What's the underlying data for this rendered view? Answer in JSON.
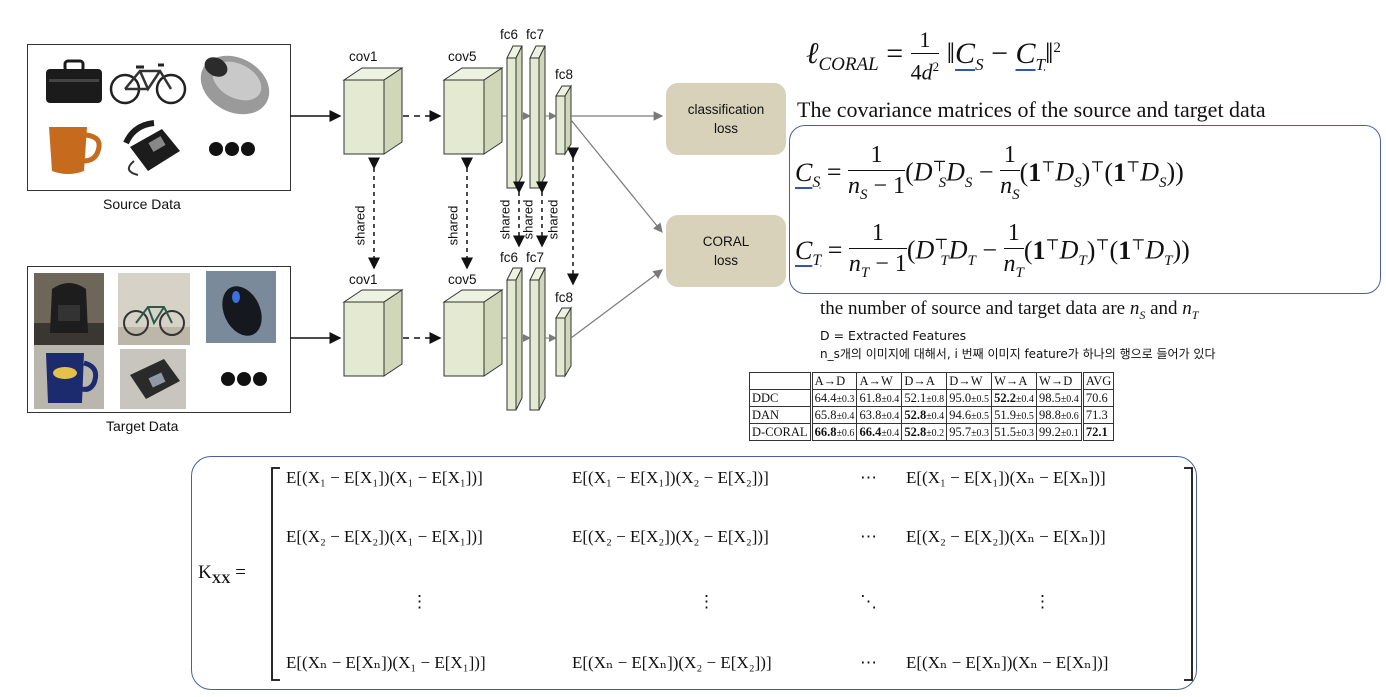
{
  "source_panel": {
    "caption": "Source Data",
    "items": [
      "briefcase",
      "bicycle",
      "computer-mouse",
      "mug",
      "phone",
      "more"
    ]
  },
  "target_panel": {
    "caption": "Target Data",
    "items": [
      "backpack",
      "bicycle",
      "computer-mouse",
      "mug",
      "phone",
      "more"
    ]
  },
  "network": {
    "top_labels": {
      "cov1": "cov1",
      "cov5": "cov5",
      "fc6": "fc6",
      "fc7": "fc7",
      "fc8": "fc8"
    },
    "bottom_labels": {
      "cov1": "cov1",
      "cov5": "cov5",
      "fc6": "fc6",
      "fc7": "fc7",
      "fc8": "fc8"
    },
    "shared_label": "shared",
    "loss_classification": {
      "line1": "classification",
      "line2": "loss"
    },
    "loss_coral": {
      "line1": "CORAL",
      "line2": "loss"
    },
    "colors": {
      "layer_fill": "#e3ead1",
      "layer_stroke": "#333333",
      "loss_fill": "#d8d2bb",
      "arrow": "#7a7a7a"
    }
  },
  "formula_text": {
    "covariance_caption": "The covariance matrices of the source and target data",
    "counts_caption_prefix": "the number of source and target data are",
    "counts_caption_and": "and",
    "features_note": "D = Extracted Features",
    "korean_note": "n_s개의 이미지에 대해서, i 번째 이미지 feature가 하나의 행으로 들어가 있다",
    "highlight_color": "#2f56b3"
  },
  "results_table": {
    "columns": [
      "",
      "A→D",
      "A→W",
      "D→A",
      "D→W",
      "W→A",
      "W→D",
      "AVG"
    ],
    "rows": [
      {
        "method": "DDC",
        "cells": [
          [
            "64.4",
            "±0.3"
          ],
          [
            "61.8",
            "±0.4"
          ],
          [
            "52.1",
            "±0.8"
          ],
          [
            "95.0",
            "±0.5"
          ],
          [
            "52.2",
            "±0.4"
          ],
          [
            "98.5",
            "±0.4"
          ],
          [
            "70.6",
            ""
          ]
        ],
        "bold": [
          false,
          false,
          false,
          false,
          true,
          false,
          false
        ]
      },
      {
        "method": "DAN",
        "cells": [
          [
            "65.8",
            "±0.4"
          ],
          [
            "63.8",
            "±0.4"
          ],
          [
            "52.8",
            "±0.4"
          ],
          [
            "94.6",
            "±0.5"
          ],
          [
            "51.9",
            "±0.5"
          ],
          [
            "98.8",
            "±0.6"
          ],
          [
            "71.3",
            ""
          ]
        ],
        "bold": [
          false,
          false,
          true,
          false,
          false,
          false,
          false
        ]
      },
      {
        "method": "D-CORAL",
        "cells": [
          [
            "66.8",
            "±0.6"
          ],
          [
            "66.4",
            "±0.4"
          ],
          [
            "52.8",
            "±0.2"
          ],
          [
            "95.7",
            "±0.3"
          ],
          [
            "51.5",
            "±0.3"
          ],
          [
            "99.2",
            "±0.1"
          ],
          [
            "72.1",
            ""
          ]
        ],
        "bold": [
          true,
          true,
          true,
          false,
          false,
          false,
          true
        ]
      }
    ]
  },
  "matrix": {
    "rows": [
      [
        "E[(X₁ − E[X₁])(X₁ − E[X₁])]",
        "E[(X₁ − E[X₁])(X₂ − E[X₂])]",
        "⋯",
        "E[(X₁ − E[X₁])(Xₙ − E[Xₙ])]"
      ],
      [
        "E[(X₂ − E[X₂])(X₁ − E[X₁])]",
        "E[(X₂ − E[X₂])(X₂ − E[X₂])]",
        "⋯",
        "E[(X₂ − E[X₂])(Xₙ − E[Xₙ])]"
      ],
      [
        "⋮",
        "⋮",
        "⋱",
        "⋮"
      ],
      [
        "E[(Xₙ − E[Xₙ])(X₁ − E[X₁])]",
        "E[(Xₙ − E[Xₙ])(X₂ − E[X₂])]",
        "⋯",
        "E[(Xₙ − E[Xₙ])(Xₙ − E[Xₙ])]"
      ]
    ]
  }
}
